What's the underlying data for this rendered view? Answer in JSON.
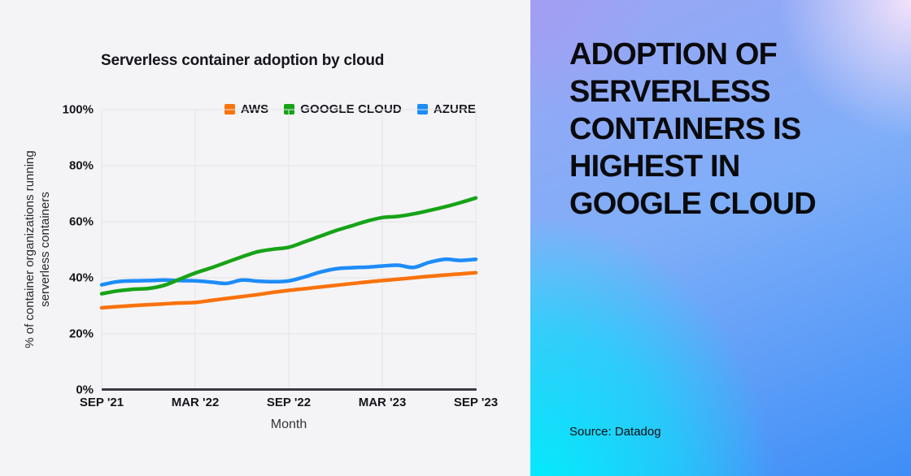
{
  "left_panel": {
    "chart_title": "Serverless container adoption by cloud",
    "y_axis_label_lines": [
      "% of container organizations running",
      "serverless containers"
    ],
    "x_axis_label": "Month"
  },
  "right_panel": {
    "headline_lines": [
      "ADOPTION OF",
      "SERVERLESS",
      "CONTAINERS IS",
      "HIGHEST IN",
      "GOOGLE CLOUD"
    ],
    "source": "Source: Datadog"
  },
  "chart_data": {
    "type": "line",
    "title": "Serverless container adoption by cloud",
    "xlabel": "Month",
    "ylabel": "% of container organizations running serverless containers",
    "ylim": [
      0,
      100
    ],
    "grid": true,
    "legend_position": "top-right",
    "y_tick_labels": [
      "0%",
      "20%",
      "40%",
      "60%",
      "80%",
      "100%"
    ],
    "x_tick_labels": [
      "SEP '21",
      "MAR '22",
      "SEP '22",
      "MAR '23",
      "SEP '23"
    ],
    "x": [
      "Sep '21",
      "Oct '21",
      "Nov '21",
      "Dec '21",
      "Jan '22",
      "Feb '22",
      "Mar '22",
      "Apr '22",
      "May '22",
      "Jun '22",
      "Jul '22",
      "Aug '22",
      "Sep '22",
      "Oct '22",
      "Nov '22",
      "Dec '22",
      "Jan '23",
      "Feb '23",
      "Mar '23",
      "Apr '23",
      "May '23",
      "Jun '23",
      "Jul '23",
      "Aug '23",
      "Sep '23"
    ],
    "series": [
      {
        "name": "AWS",
        "color": "#F9720D",
        "values": [
          29.3,
          29.7,
          30.1,
          30.4,
          30.7,
          31.0,
          31.2,
          31.9,
          32.6,
          33.3,
          34.0,
          34.8,
          35.5,
          36.1,
          36.7,
          37.3,
          37.9,
          38.5,
          39.0,
          39.5,
          40.0,
          40.5,
          41.0,
          41.4,
          41.8
        ]
      },
      {
        "name": "GOOGLE CLOUD",
        "color": "#17A317",
        "values": [
          34.3,
          35.3,
          35.9,
          36.2,
          37.3,
          39.5,
          41.7,
          43.5,
          45.5,
          47.5,
          49.3,
          50.2,
          50.9,
          52.8,
          54.8,
          56.8,
          58.5,
          60.2,
          61.5,
          61.9,
          62.8,
          64.0,
          65.3,
          66.8,
          68.5
        ]
      },
      {
        "name": "AZURE",
        "color": "#1D8CF8",
        "values": [
          37.5,
          38.6,
          38.9,
          39.0,
          39.2,
          39.0,
          38.9,
          38.5,
          38.0,
          39.2,
          38.8,
          38.6,
          38.9,
          40.3,
          42.0,
          43.2,
          43.6,
          43.8,
          44.2,
          44.5,
          43.7,
          45.5,
          46.6,
          46.2,
          46.6
        ]
      }
    ],
    "colors": {
      "gridline": "#E4E4E8",
      "axis_line": "#3A3A44",
      "panel_background": "#F4F4F6"
    }
  }
}
